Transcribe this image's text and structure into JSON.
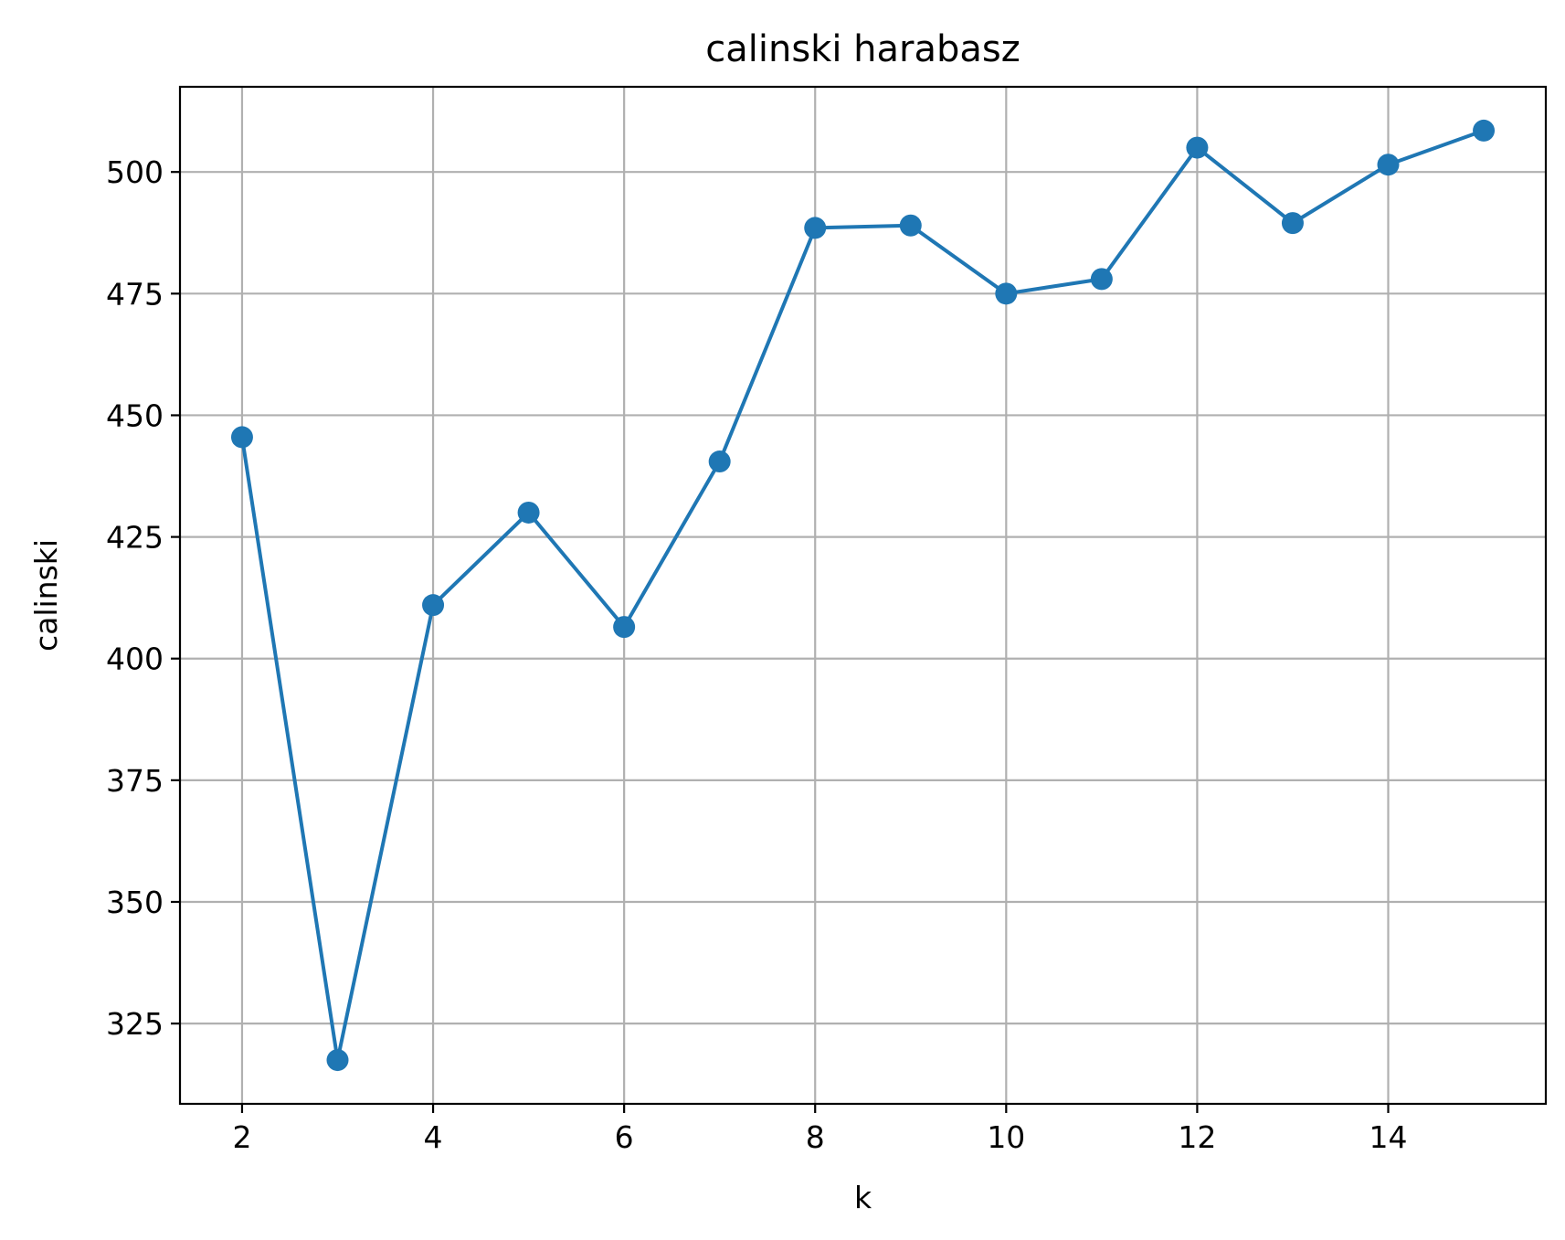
{
  "chart_data": {
    "type": "line",
    "title": "calinski harabasz",
    "xlabel": "k",
    "ylabel": "calinski",
    "x": [
      2,
      3,
      4,
      5,
      6,
      7,
      8,
      9,
      10,
      11,
      12,
      13,
      14,
      15
    ],
    "series": [
      {
        "values": [
          445.5,
          317.5,
          411.0,
          430.0,
          406.5,
          440.5,
          488.5,
          489.0,
          475.0,
          478.0,
          505.0,
          489.5,
          501.5,
          508.5
        ],
        "color": "#1f77b4",
        "marker": "circle"
      }
    ],
    "xlim": [
      1.35,
      15.65
    ],
    "ylim": [
      308.5,
      517.5
    ],
    "xticks": [
      2,
      4,
      6,
      8,
      10,
      12,
      14
    ],
    "yticks": [
      325,
      350,
      375,
      400,
      425,
      450,
      475,
      500
    ],
    "grid": true
  }
}
